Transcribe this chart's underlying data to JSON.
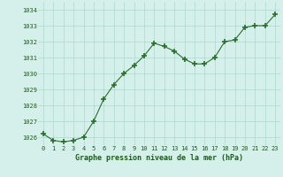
{
  "x": [
    0,
    1,
    2,
    3,
    4,
    5,
    6,
    7,
    8,
    9,
    10,
    11,
    12,
    13,
    14,
    15,
    16,
    17,
    18,
    19,
    20,
    21,
    22,
    23
  ],
  "y": [
    1026.2,
    1025.8,
    1025.7,
    1025.8,
    1026.0,
    1027.0,
    1028.4,
    1029.3,
    1030.0,
    1030.5,
    1031.1,
    1031.9,
    1031.7,
    1031.4,
    1030.9,
    1030.6,
    1030.6,
    1031.0,
    1032.0,
    1032.1,
    1032.9,
    1033.0,
    1033.0,
    1033.7
  ],
  "line_color": "#2a6e2a",
  "marker_color": "#2a6e2a",
  "bg_color": "#d5f0eb",
  "grid_color": "#a8d8cf",
  "xlabel": "Graphe pression niveau de la mer (hPa)",
  "xlabel_color": "#1a5c1a",
  "tick_label_color": "#1a5c1a",
  "ylim": [
    1025.5,
    1034.5
  ],
  "yticks": [
    1026,
    1027,
    1028,
    1029,
    1030,
    1031,
    1032,
    1033,
    1034
  ],
  "xticks": [
    0,
    1,
    2,
    3,
    4,
    5,
    6,
    7,
    8,
    9,
    10,
    11,
    12,
    13,
    14,
    15,
    16,
    17,
    18,
    19,
    20,
    21,
    22,
    23
  ],
  "xlim": [
    -0.5,
    23.5
  ]
}
